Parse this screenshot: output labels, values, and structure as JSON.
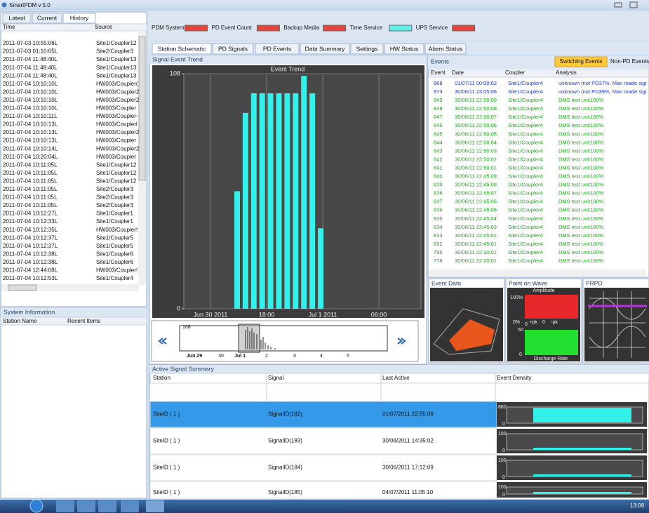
{
  "app_title": "SmartPDM v 5.0",
  "left_tabs": [
    "Latest",
    "Current",
    "History"
  ],
  "history_table": {
    "columns": [
      "Time",
      "Source"
    ],
    "rows": [
      [
        "2011-07-03 10:55:06L",
        "Site1/Coupler12"
      ],
      [
        "2011-07-03 01:10:05L",
        "Site2/Coupler3"
      ],
      [
        "2011-07-04 11:48:40L",
        "Site1/Coupler13"
      ],
      [
        "2011-07-04 11:48:40L",
        "Site1/Coupler13"
      ],
      [
        "2011-07-04 11:48:40L",
        "Site1/Coupler13"
      ],
      [
        "2011-07-04 10:10:10L",
        "HW003/Coupler("
      ],
      [
        "2011-07-04 10:10:10L",
        "HW003/Coupler2"
      ],
      [
        "2011-07-04 10:10:10L",
        "HW003/Coupler2"
      ],
      [
        "2011-07-04 10:10:10L",
        "HW003/Coupler"
      ],
      [
        "2011-07-04 10:10:11L",
        "HW003/Coupler-"
      ],
      [
        "2011-07-04 10:10:13L",
        "HW003/Couplerl"
      ],
      [
        "2011-07-04 10:10:13L",
        "HW003/Coupler2"
      ],
      [
        "2011-07-04 10:10:13L",
        "HW003/Coupler"
      ],
      [
        "2011-07-04 10:10:14L",
        "HW003/Coupler2"
      ],
      [
        "2011-07-04 10:20:04L",
        "HW003/Coupler"
      ],
      [
        "2011-07-04 10:11:05L",
        "Site1/Coupler12"
      ],
      [
        "2011-07-04 10:11:05L",
        "Site1/Coupler12"
      ],
      [
        "2011-07-04 10:11:05L",
        "Site1/Coupler12"
      ],
      [
        "2011-07-04 10:11:05L",
        "Site2/Coupler3"
      ],
      [
        "2011-07-04 10:11:05L",
        "Site2/Coupler3"
      ],
      [
        "2011-07-04 10:11:05L",
        "Site2/Coupler3"
      ],
      [
        "2011-07-04 10:12:27L",
        "Site1/Coupler1"
      ],
      [
        "2011-07-04 10:12:33L",
        "Site1/Coupler1"
      ],
      [
        "2011-07-04 10:12:35L",
        "HW003/Coupler!"
      ],
      [
        "2011-07-04 10:12:37L",
        "Site1/Coupler5"
      ],
      [
        "2011-07-04 10:12:37L",
        "Site1/Coupler5"
      ],
      [
        "2011-07-04 10:12:38L",
        "Site1/Coupler6"
      ],
      [
        "2011-07-04 10:12:38L",
        "Site1/Coupler6"
      ],
      [
        "2011-07-04 12:44:08L",
        "HW003/Coupler!"
      ],
      [
        "2011-07-04 10:12:53L",
        "Site1/Coupler4"
      ]
    ]
  },
  "system_info": {
    "title": "System Information",
    "columns": [
      "Station Name",
      "Recent Items"
    ]
  },
  "status": [
    {
      "label": "PDM System",
      "color": "#e5453a"
    },
    {
      "label": "PD Event Count",
      "color": "#e5453a"
    },
    {
      "label": "Backup Media",
      "color": "#e5453a"
    },
    {
      "label": "Time Service",
      "color": "#5ff0e6"
    },
    {
      "label": "UPS Service",
      "color": "#e5453a"
    }
  ],
  "tabs": [
    "Station Schematic",
    "PD Signals",
    "PD Events",
    "Data Summary",
    "Settings",
    "HW Status",
    "Alarm Status"
  ],
  "signal_panel": {
    "title": "Signal Event Trend",
    "chart": {
      "type": "bar",
      "title": "Event Trend",
      "categories": [
        null,
        null,
        null,
        null,
        null,
        null,
        null,
        null,
        null,
        null,
        null
      ],
      "values": [
        54,
        90,
        99,
        99,
        99,
        99,
        99,
        99,
        107,
        99,
        37
      ],
      "color": "#33f0e8",
      "ylim": [
        0,
        108
      ],
      "yticks": [
        0,
        108
      ],
      "xtick_labels": [
        "Jun 30 2011",
        "18:00",
        "Jul 1 2011",
        "06:00"
      ],
      "grid": true
    },
    "navigator": {
      "max_label": "108",
      "labels": [
        "Jun 29",
        "30",
        "Jul 1",
        "2",
        "3",
        "4",
        "5"
      ]
    }
  },
  "events": {
    "title": "Events",
    "buttons": [
      "Switching Events",
      "Non-PD Events"
    ],
    "columns": [
      "Event",
      "Date",
      "Coupler",
      "Analysis"
    ],
    "row_colors": [
      "#1a35d8",
      "#1a35d8",
      "#1aa81a",
      "#1aa81a",
      "#1aa81a",
      "#1aa81a",
      "#1aa81a",
      "#1aa81a",
      "#1aa81a",
      "#1aa81a",
      "#1aa81a",
      "#1aa81a",
      "#1aa81a",
      "#1aa81a",
      "#1aa81a",
      "#1aa81a",
      "#1aa81a",
      "#1aa81a",
      "#1aa81a",
      "#1aa81a",
      "#1aa81a",
      "#1aa81a"
    ],
    "rows": [
      [
        "968",
        "01/07/11 00:00:02",
        "Site1/Coupler4",
        "unknown (not PD37%, Man made sigi"
      ],
      [
        "873",
        "30/06/11 23:05:06",
        "Site1/Coupler4",
        "unknown (not PD39%, Man made sigi"
      ],
      [
        "849",
        "30/06/11 22:50:09",
        "Site1/Coupler4",
        "DMS test unit100%"
      ],
      [
        "848",
        "30/06/11 22:50:08",
        "Site1/Coupler4",
        "DMS test unit100%"
      ],
      [
        "847",
        "30/06/11 22:50:07",
        "Site1/Coupler4",
        "DMS test unit100%"
      ],
      [
        "846",
        "30/06/11 22:50:06",
        "Site1/Coupler4",
        "DMS test unit100%"
      ],
      [
        "845",
        "30/06/11 22:50:05",
        "Site1/Coupler4",
        "DMS test unit100%"
      ],
      [
        "844",
        "30/06/11 22:50:04",
        "Site1/Coupler4",
        "DMS test unit100%"
      ],
      [
        "843",
        "30/06/11 22:50:03",
        "Site1/Coupler4",
        "DMS test unit100%"
      ],
      [
        "842",
        "30/06/11 22:50:02",
        "Site1/Coupler4",
        "DMS test unit100%"
      ],
      [
        "841",
        "30/06/11 22:50:01",
        "Site1/Coupler4",
        "DMS test unit100%"
      ],
      [
        "840",
        "30/06/11 22:45:09",
        "Site1/Coupler4",
        "DMS test unit100%"
      ],
      [
        "839",
        "30/06/11 22:45:08",
        "Site1/Coupler4",
        "DMS test unit100%"
      ],
      [
        "838",
        "30/06/11 22:45:07",
        "Site1/Coupler4",
        "DMS test unit100%"
      ],
      [
        "837",
        "30/06/11 22:45:06",
        "Site1/Coupler4",
        "DMS test unit100%"
      ],
      [
        "836",
        "30/06/11 22:45:05",
        "Site1/Coupler4",
        "DMS test unit100%"
      ],
      [
        "835",
        "30/06/11 22:45:04",
        "Site1/Coupler4",
        "DMS test unit100%"
      ],
      [
        "834",
        "30/06/11 22:45:03",
        "Site1/Coupler4",
        "DMS test unit100%"
      ],
      [
        "833",
        "30/06/11 22:45:02",
        "Site1/Coupler4",
        "DMS test unit100%"
      ],
      [
        "832",
        "30/06/11 22:45:01",
        "Site1/Coupler4",
        "DMS test unit100%"
      ],
      [
        "796",
        "30/06/11 22:30:01",
        "Site1/Coupler4",
        "DMS test unit100%"
      ],
      [
        "778",
        "30/06/11 22:20:01",
        "Site1/Coupler4",
        "DMS test unit100%"
      ]
    ]
  },
  "panels": {
    "event_data": "Event Data",
    "point_on_wave": {
      "title": "Point on Wave",
      "labels": [
        "Amplitude",
        "100%",
        "0%",
        "+pk",
        "0",
        "-pk",
        "0",
        "50",
        "0",
        "Discharge Rate"
      ]
    },
    "prpd": "PRPD"
  },
  "summary": {
    "title": "Active Signal Summary",
    "columns": [
      "Station",
      "Signal",
      "Last Active",
      "Event Density"
    ],
    "rows": [
      {
        "station": "SiteID ( 1 )",
        "signal": "SignalID(182)",
        "last_active": "01/07/2011 22:55:06",
        "density_max": 882,
        "density_min": 0,
        "selected": true
      },
      {
        "station": "SiteID ( 1 )",
        "signal": "SignalID(183)",
        "last_active": "30/06/2011 14:35:02",
        "density_max": 100,
        "density_min": 0,
        "selected": false
      },
      {
        "station": "SiteID ( 1 )",
        "signal": "SignalID(184)",
        "last_active": "30/06/2011 17:12:09",
        "density_max": 100,
        "density_min": 0,
        "selected": false
      },
      {
        "station": "SiteID ( 1 )",
        "signal": "SignalID(185)",
        "last_active": "04/07/2011 11:05:10",
        "density_max": 100,
        "density_min": 0,
        "selected": false
      }
    ]
  },
  "clock": "13:09"
}
